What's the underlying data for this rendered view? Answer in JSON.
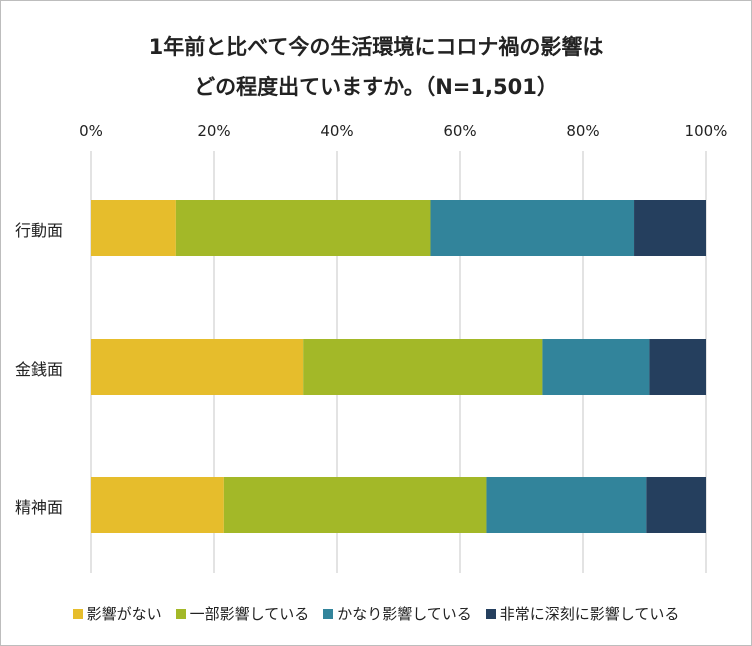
{
  "chart_data": {
    "type": "bar",
    "orientation": "horizontal",
    "stacked": "percent",
    "title": [
      "1年前と比べて今の生活環境にコロナ禍の影響は",
      "どの程度出ていますか。（N=1,501）"
    ],
    "categories": [
      "行動面",
      "金銭面",
      "精神面"
    ],
    "xlim": [
      0,
      100
    ],
    "xticks": [
      "0%",
      "20%",
      "40%",
      "60%",
      "80%",
      "100%"
    ],
    "grid": true,
    "legend_position": "bottom",
    "series": [
      {
        "name": "影響がない",
        "color": "#e6bd2c",
        "values": [
          13.8,
          34.5,
          21.6
        ]
      },
      {
        "name": "一部影響している",
        "color": "#a3b828",
        "values": [
          41.4,
          38.9,
          42.7
        ]
      },
      {
        "name": "かなり影響している",
        "color": "#32849b",
        "values": [
          33.1,
          17.4,
          26.0
        ]
      },
      {
        "name": "非常に深刻に影響している",
        "color": "#253f5e",
        "values": [
          11.7,
          9.2,
          9.7
        ]
      }
    ]
  }
}
